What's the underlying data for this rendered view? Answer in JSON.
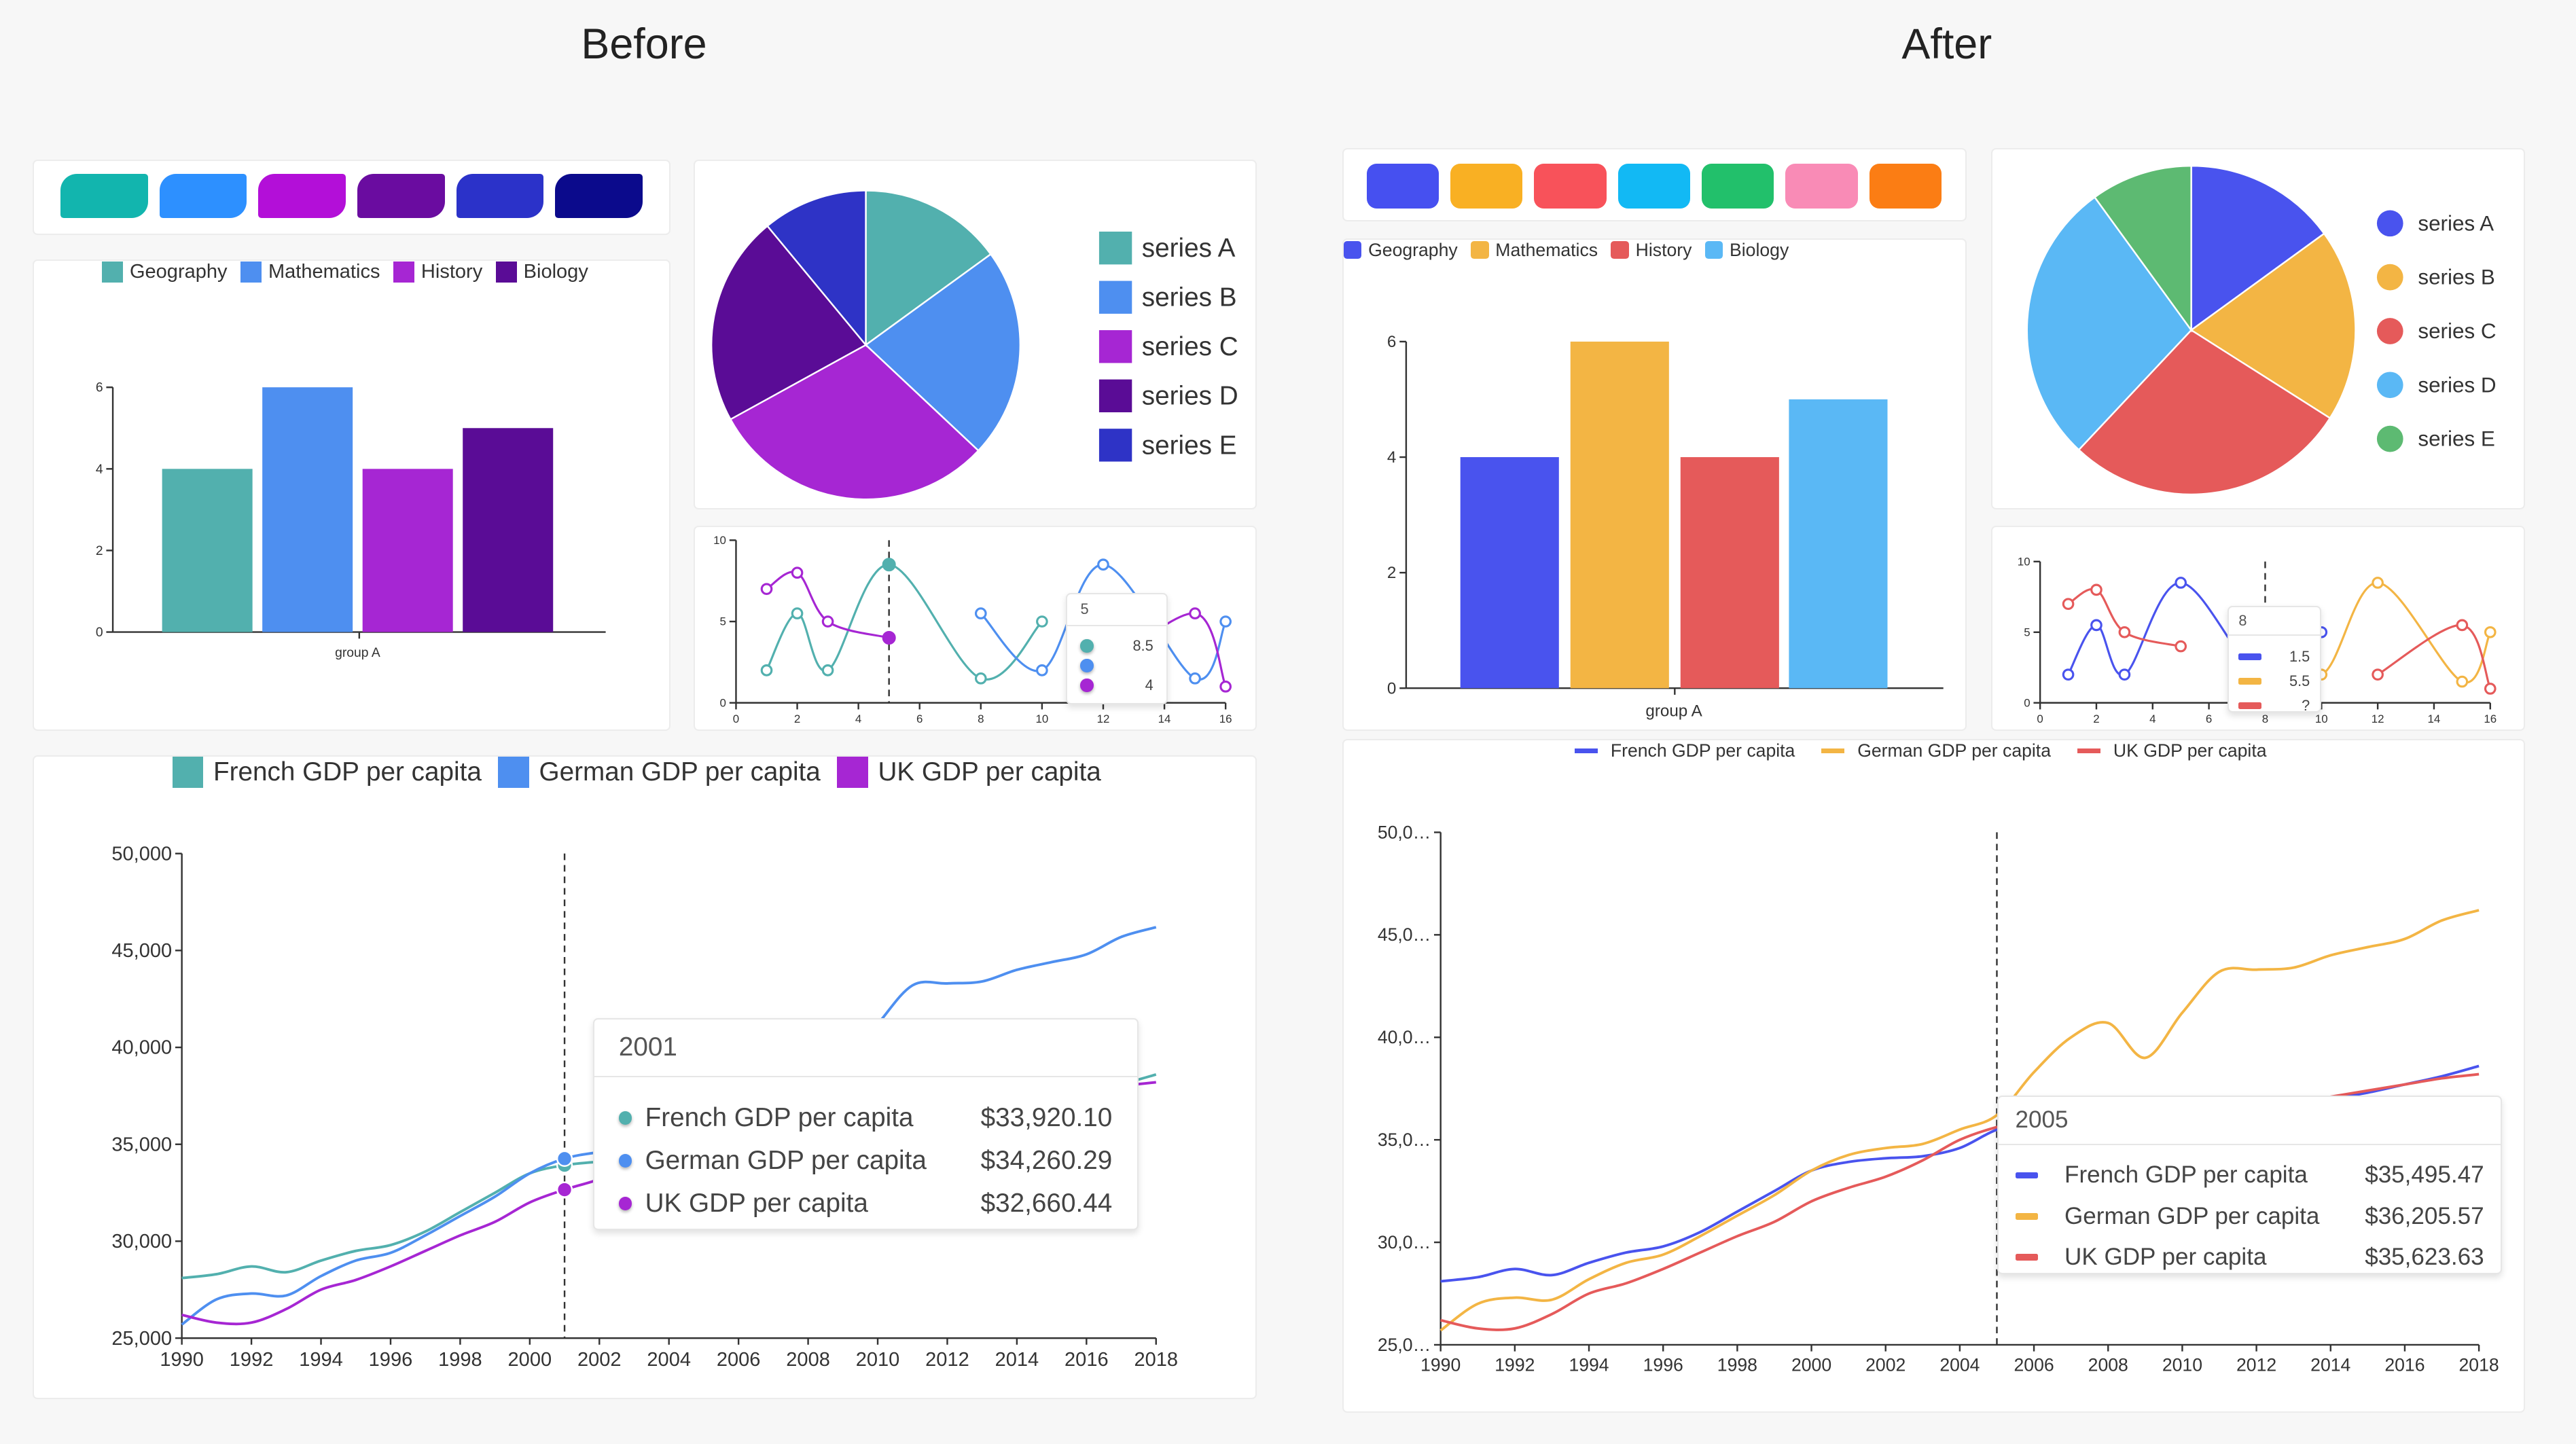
{
  "titles": {
    "before": "Before",
    "after": "After"
  },
  "before": {
    "swatches": [
      "#12b5ae",
      "#2d90ff",
      "#b30fd8",
      "#6a0ca0",
      "#2b32c9",
      "#0b0a8c"
    ]
  },
  "after": {
    "swatches": [
      "#4650f0",
      "#f9b023",
      "#f8525a",
      "#12b9f4",
      "#22c06b",
      "#f98bb6",
      "#fb7d14"
    ]
  },
  "chart_data": [
    {
      "type": "bar",
      "categories": [
        "group A"
      ],
      "ylim": [
        0,
        6
      ],
      "yticks": [
        "0",
        "2",
        "4",
        "6"
      ],
      "series": [
        {
          "name": "Geography",
          "values": [
            4
          ],
          "color": "#52b0ae"
        },
        {
          "name": "Mathematics",
          "values": [
            6
          ],
          "color": "#4e8ff0"
        },
        {
          "name": "History",
          "values": [
            4
          ],
          "color": "#a626d3"
        },
        {
          "name": "Biology",
          "values": [
            5
          ],
          "color": "#5a0c96"
        }
      ],
      "legend": "top"
    },
    {
      "type": "pie",
      "labels": [
        "series A",
        "series B",
        "series C",
        "series D",
        "series E"
      ],
      "values": [
        15,
        22,
        30,
        22,
        11
      ],
      "colors": [
        "#52b0ae",
        "#4e8ff0",
        "#a626d3",
        "#5a0c96",
        "#2e33c6"
      ],
      "legend": "right"
    },
    {
      "type": "line",
      "xlim": [
        0,
        16
      ],
      "ylim": [
        0,
        10
      ],
      "xticks": [
        "0",
        "2",
        "4",
        "6",
        "8",
        "10",
        "12",
        "14",
        "16"
      ],
      "yticks": [
        "0",
        "5",
        "10"
      ],
      "series": [
        {
          "color": "#52b0ae",
          "points": [
            [
              1,
              2
            ],
            [
              2,
              5.5
            ],
            [
              3,
              2
            ],
            [
              5,
              8.5
            ],
            [
              8,
              1.5
            ],
            [
              10,
              5
            ]
          ]
        },
        {
          "color": "#4e8ff0",
          "points": [
            [
              8,
              5.5
            ],
            [
              10,
              2
            ],
            [
              12,
              8.5
            ],
            [
              15,
              1.5
            ],
            [
              16,
              5
            ]
          ]
        },
        {
          "color": "#a626d3",
          "points": [
            [
              1,
              7
            ],
            [
              2,
              8
            ],
            [
              3,
              5
            ],
            [
              5,
              4
            ],
            null,
            [
              12,
              2
            ],
            [
              15,
              5.5
            ],
            [
              16,
              1
            ]
          ]
        }
      ],
      "cursor_x": 5,
      "tooltip": {
        "label": "5",
        "values": [
          "8.5",
          "",
          "4"
        ]
      }
    },
    {
      "type": "line",
      "xlim": [
        1990,
        2018
      ],
      "ylim": [
        25000,
        50000
      ],
      "xticks": [
        "1990",
        "1992",
        "1994",
        "1996",
        "1998",
        "2000",
        "2002",
        "2004",
        "2006",
        "2008",
        "2010",
        "2012",
        "2014",
        "2016",
        "2018"
      ],
      "yticks": [
        "25,000",
        "30,000",
        "35,000",
        "40,000",
        "45,000",
        "50,000"
      ],
      "years": [
        1990,
        1991,
        1992,
        1993,
        1994,
        1995,
        1996,
        1997,
        1998,
        1999,
        2000,
        2001,
        2002,
        2003,
        2004,
        2005,
        2006,
        2007,
        2008,
        2009,
        2010,
        2011,
        2012,
        2013,
        2014,
        2015,
        2016,
        2017,
        2018
      ],
      "series": [
        {
          "name": "French GDP per capita",
          "color": "#52b0ae",
          "values": [
            28100,
            28300,
            28700,
            28400,
            29000,
            29500,
            29800,
            30500,
            31500,
            32500,
            33500,
            33920,
            34100,
            34200,
            34600,
            35495,
            35900,
            36200,
            36400,
            35600,
            35900,
            36200,
            36400,
            36700,
            37000,
            37300,
            37700,
            38100,
            38600
          ]
        },
        {
          "name": "German GDP per capita",
          "color": "#4e8ff0",
          "values": [
            25700,
            27000,
            27300,
            27200,
            28200,
            29000,
            29400,
            30300,
            31300,
            32300,
            33500,
            34260,
            34600,
            34800,
            35500,
            36205,
            38300,
            40000,
            40700,
            39000,
            41200,
            43200,
            43300,
            43400,
            44000,
            44400,
            44800,
            45700,
            46200
          ]
        },
        {
          "name": "UK GDP per capita",
          "color": "#a626d3",
          "values": [
            26200,
            25800,
            25800,
            26500,
            27500,
            28000,
            28700,
            29500,
            30300,
            31000,
            32000,
            32660,
            33200,
            34000,
            35000,
            35623,
            36000,
            36400,
            36700,
            35800,
            36100,
            36300,
            36500,
            36800,
            37100,
            37400,
            37700,
            38000,
            38200
          ]
        }
      ],
      "cursor_x": 2001,
      "tooltip": {
        "label": "2001",
        "values": [
          "$33,920.10",
          "$34,260.29",
          "$32,660.44"
        ]
      },
      "legend": "top"
    },
    {
      "type": "bar",
      "categories": [
        "group A"
      ],
      "ylim": [
        0,
        6
      ],
      "yticks": [
        "0",
        "2",
        "4",
        "6"
      ],
      "series": [
        {
          "name": "Geography",
          "values": [
            4
          ],
          "color": "#4953ee"
        },
        {
          "name": "Mathematics",
          "values": [
            6
          ],
          "color": "#f3b544"
        },
        {
          "name": "History",
          "values": [
            4
          ],
          "color": "#e55a5a"
        },
        {
          "name": "Biology",
          "values": [
            5
          ],
          "color": "#5ab8f5"
        }
      ],
      "legend": "top-left"
    },
    {
      "type": "pie",
      "labels": [
        "series A",
        "series B",
        "series C",
        "series D",
        "series E"
      ],
      "values": [
        15,
        19,
        28,
        28,
        10
      ],
      "colors": [
        "#4953ee",
        "#f3b544",
        "#e55a5a",
        "#5ab8f5",
        "#5dba72"
      ],
      "legend": "right"
    },
    {
      "type": "line",
      "xlim": [
        0,
        16
      ],
      "ylim": [
        0,
        10
      ],
      "xticks": [
        "0",
        "2",
        "4",
        "6",
        "8",
        "10",
        "12",
        "14",
        "16"
      ],
      "yticks": [
        "0",
        "5",
        "10"
      ],
      "series": [
        {
          "color": "#4953ee",
          "points": [
            [
              1,
              2
            ],
            [
              2,
              5.5
            ],
            [
              3,
              2
            ],
            [
              5,
              8.5
            ],
            [
              8,
              1.5
            ],
            [
              10,
              5
            ]
          ]
        },
        {
          "color": "#f3b544",
          "points": [
            [
              8,
              5.5
            ],
            [
              10,
              2
            ],
            [
              12,
              8.5
            ],
            [
              15,
              1.5
            ],
            [
              16,
              5
            ]
          ]
        },
        {
          "color": "#e55a5a",
          "points": [
            [
              1,
              7
            ],
            [
              2,
              8
            ],
            [
              3,
              5
            ],
            [
              5,
              4
            ],
            null,
            [
              12,
              2
            ],
            [
              15,
              5.5
            ],
            [
              16,
              1
            ]
          ]
        }
      ],
      "cursor_x": 8,
      "tooltip": {
        "label": "8",
        "values": [
          "1.5",
          "5.5",
          "?"
        ]
      }
    },
    {
      "type": "line",
      "xlim": [
        1990,
        2018
      ],
      "ylim": [
        25000,
        50000
      ],
      "xticks": [
        "1990",
        "1992",
        "1994",
        "1996",
        "1998",
        "2000",
        "2002",
        "2004",
        "2006",
        "2008",
        "2010",
        "2012",
        "2014",
        "2016",
        "2018"
      ],
      "yticks": [
        "25,0…",
        "30,0…",
        "35,0…",
        "40,0…",
        "45,0…",
        "50,0…"
      ],
      "years": [
        1990,
        1991,
        1992,
        1993,
        1994,
        1995,
        1996,
        1997,
        1998,
        1999,
        2000,
        2001,
        2002,
        2003,
        2004,
        2005,
        2006,
        2007,
        2008,
        2009,
        2010,
        2011,
        2012,
        2013,
        2014,
        2015,
        2016,
        2017,
        2018
      ],
      "series": [
        {
          "name": "French GDP per capita",
          "color": "#4953ee",
          "values": [
            28100,
            28300,
            28700,
            28400,
            29000,
            29500,
            29800,
            30500,
            31500,
            32500,
            33500,
            33920,
            34100,
            34200,
            34600,
            35495,
            35900,
            36200,
            36400,
            35600,
            35900,
            36200,
            36400,
            36700,
            37000,
            37300,
            37700,
            38100,
            38600
          ]
        },
        {
          "name": "German GDP per capita",
          "color": "#f3b544",
          "values": [
            25700,
            27000,
            27300,
            27200,
            28200,
            29000,
            29400,
            30300,
            31300,
            32300,
            33500,
            34260,
            34600,
            34800,
            35500,
            36205,
            38300,
            40000,
            40700,
            39000,
            41200,
            43200,
            43300,
            43400,
            44000,
            44400,
            44800,
            45700,
            46200
          ]
        },
        {
          "name": "UK GDP per capita",
          "color": "#e55a5a",
          "values": [
            26200,
            25800,
            25800,
            26500,
            27500,
            28000,
            28700,
            29500,
            30300,
            31000,
            32000,
            32660,
            33200,
            34000,
            35000,
            35623,
            36000,
            36400,
            36700,
            35800,
            36100,
            36300,
            36500,
            36800,
            37100,
            37400,
            37700,
            38000,
            38200
          ]
        }
      ],
      "cursor_x": 2005,
      "tooltip": {
        "label": "2005",
        "values": [
          "$35,495.47",
          "$36,205.57",
          "$35,623.63"
        ]
      },
      "legend": "top"
    }
  ]
}
